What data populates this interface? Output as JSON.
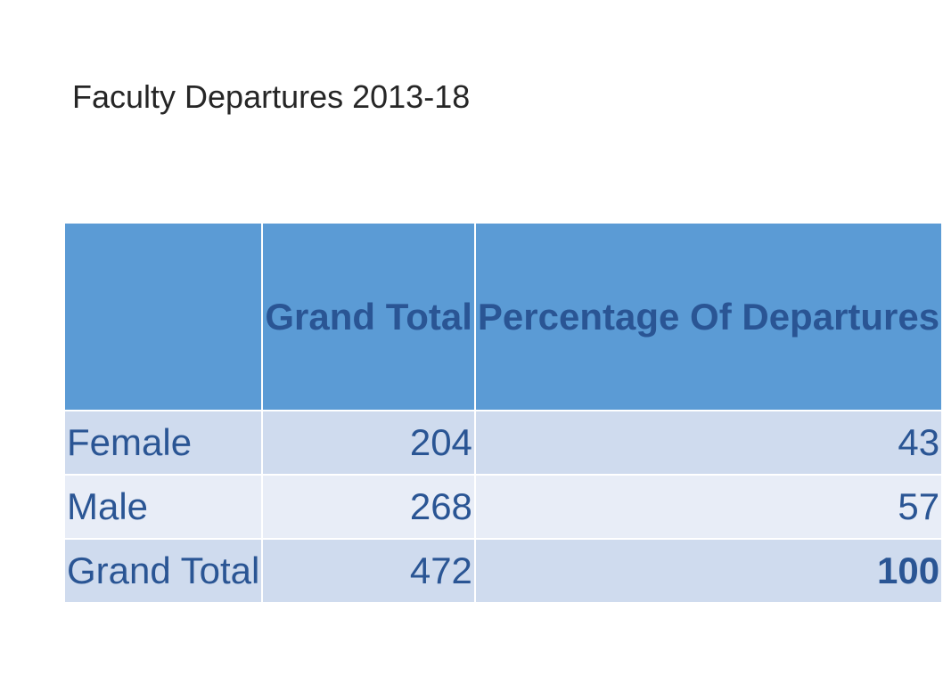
{
  "slide": {
    "title": "Faculty Departures 2013-18"
  },
  "table": {
    "headers": [
      "",
      "Grand Total",
      "Percentage Of Departures"
    ],
    "rows": [
      {
        "label": "Female",
        "total": "204",
        "percentage": "43"
      },
      {
        "label": "Male",
        "total": "268",
        "percentage": "57"
      },
      {
        "label": "Grand Total",
        "total": "472",
        "percentage": "100"
      }
    ]
  },
  "colors": {
    "header_fill": "#5b9bd5",
    "row_odd_fill": "#cfdbee",
    "row_even_fill": "#e8edf7",
    "text": "#2a5594"
  },
  "chart_data": {
    "type": "table",
    "title": "Faculty Departures 2013-18",
    "columns": [
      "",
      "Grand Total",
      "Percentage Of Departures"
    ],
    "rows": [
      [
        "Female",
        204,
        43
      ],
      [
        "Male",
        268,
        57
      ],
      [
        "Grand Total",
        472,
        100
      ]
    ]
  }
}
